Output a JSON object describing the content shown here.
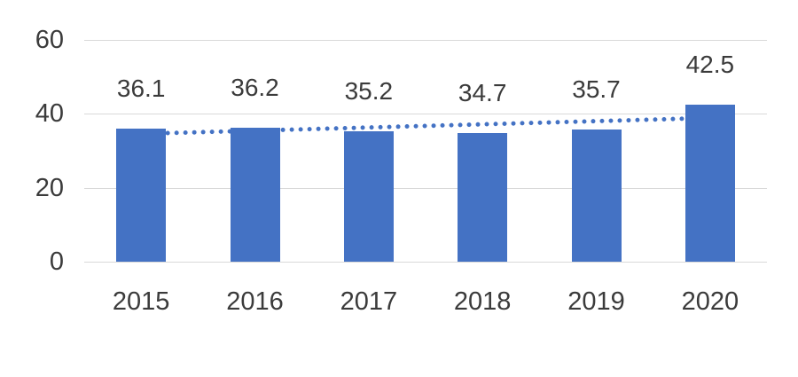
{
  "chart_data": {
    "type": "bar",
    "title": "",
    "categories": [
      "2015",
      "2016",
      "2017",
      "2018",
      "2019",
      "2020"
    ],
    "values": [
      36.1,
      36.2,
      35.2,
      34.7,
      35.7,
      42.5
    ],
    "data_labels": [
      "36.1",
      "36.2",
      "35.2",
      "34.7",
      "35.7",
      "42.5"
    ],
    "ylim": [
      0,
      60
    ],
    "yticks": [
      0,
      20,
      40,
      60
    ],
    "grid": true,
    "legend": "none",
    "bar_color": "#4472c4",
    "trendline": {
      "type": "linear",
      "style": "dotted",
      "color": "#4472c4"
    },
    "gridline_color": "#d9d9d9",
    "text_color": "#3b3b3b"
  }
}
